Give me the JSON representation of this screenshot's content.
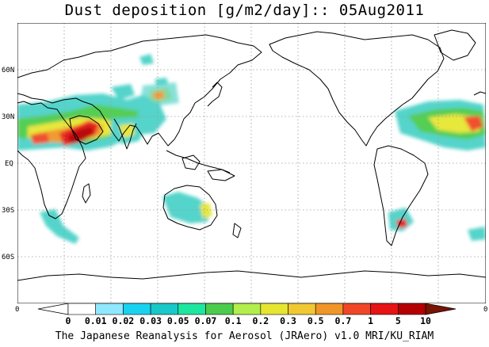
{
  "title": "Dust deposition [g/m2/day]:: 05Aug2011",
  "credit": "The Japanese Reanalysis for Aerosol (JRAero) v1.0 MRI/KU_RIAM",
  "map": {
    "projection": "equirectangular, Pacific-centered",
    "lat_ticks": [
      "60N",
      "30N",
      "EQ",
      "30S",
      "60S"
    ],
    "x_axis_left_label": "0",
    "x_axis_right_label": "0",
    "gridlines": "dotted",
    "dust_regions": [
      {
        "name": "Sahara / Arabia / South Asia belt",
        "level": "0.3-10"
      },
      {
        "name": "Atlantic dust outflow",
        "level": "0.05-5"
      },
      {
        "name": "Central Asia / Taklamakan",
        "level": "0.03-0.3"
      },
      {
        "name": "Australia",
        "level": "0.03-0.3"
      },
      {
        "name": "Patagonia",
        "level": "0.03-1"
      },
      {
        "name": "Southern Africa outflow",
        "level": "0.02-0.1"
      }
    ]
  },
  "colorbar": {
    "labels": [
      "0",
      "0.01",
      "0.02",
      "0.03",
      "0.05",
      "0.07",
      "0.1",
      "0.2",
      "0.3",
      "0.5",
      "0.7",
      "1",
      "5",
      "10"
    ],
    "colors": [
      "#ffffff",
      "#ffffff",
      "#8fe8ff",
      "#19d2f0",
      "#19c8c8",
      "#1ee6a0",
      "#4ccc4c",
      "#b2ee4c",
      "#e6e632",
      "#f0c832",
      "#f09628",
      "#f04628",
      "#e61414",
      "#b40000",
      "#781400"
    ]
  }
}
